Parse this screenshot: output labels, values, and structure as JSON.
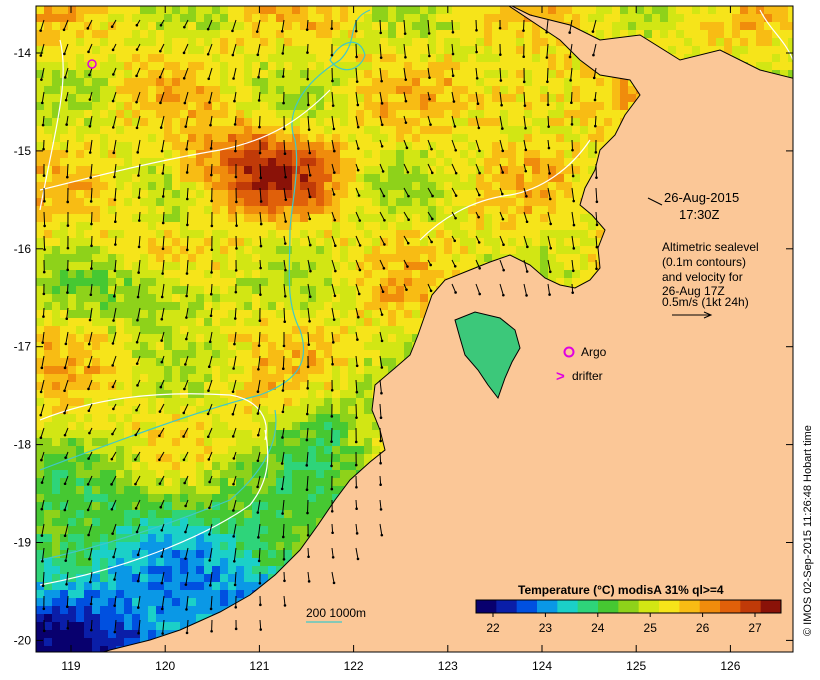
{
  "map": {
    "lon_ticks": [
      "119",
      "120",
      "121",
      "122",
      "123",
      "124",
      "125",
      "126"
    ],
    "lat_ticks": [
      "-14",
      "-15",
      "-16",
      "-17",
      "-18",
      "-19",
      "-20"
    ],
    "datetime_line1": "26-Aug-2015",
    "datetime_line2": "17:30Z",
    "info_lines": [
      "Altimetric sealevel",
      "(0.1m contours)",
      "and velocity for",
      "26-Aug 17Z",
      "0.5m/s (1kt 24h)"
    ],
    "argo_label": "Argo",
    "drifter_label": "drifter",
    "drifter_symbol": ">",
    "depth_label": "200  1000m",
    "credit": "© IMOS 02-Sep-2015 11:26:48 Hobart time",
    "colorbar_title": "Temperature (°C) modisA 31% ql>=4",
    "colorbar_ticks": [
      "22",
      "23",
      "24",
      "25",
      "26",
      "27"
    ],
    "colors": {
      "land": "#fbc797",
      "argo_marker": "#e000e0",
      "depth_200": "#ffffff",
      "depth_1000": "#40c8c8"
    },
    "colormap": [
      "#08006e",
      "#0a1ea8",
      "#0050e0",
      "#0a98e6",
      "#1bd0c8",
      "#2ed47a",
      "#46c832",
      "#8ed21a",
      "#d2e614",
      "#f6e41a",
      "#f8bc14",
      "#f08c0c",
      "#e0600a",
      "#c03a08",
      "#8a1208"
    ]
  }
}
